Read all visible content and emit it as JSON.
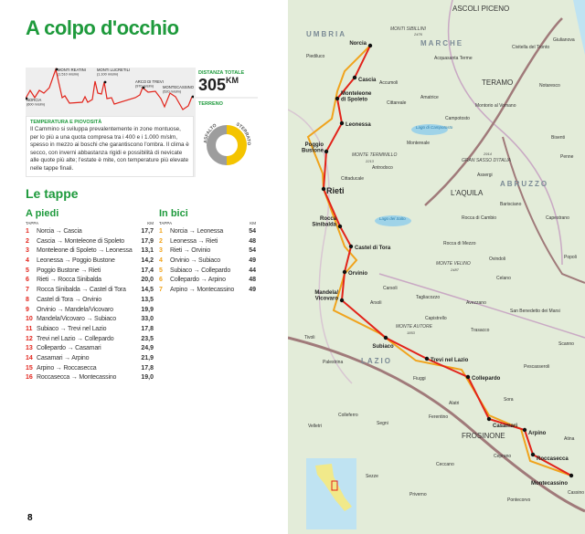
{
  "title": "A colpo d'occhio",
  "profile": {
    "peaks": [
      {
        "name": "NORCIA",
        "alt": "(600 m/slm)"
      },
      {
        "name": "MONTI REATINI",
        "alt": "(1.510 m/slm)"
      },
      {
        "name": "MONTI LUCRETILI",
        "alt": "(1.100 m/slm)"
      },
      {
        "name": "ARCO DI TREVI",
        "alt": "(970 m/slm)"
      },
      {
        "name": "MONTECASSINO",
        "alt": "(520 m/slm)"
      }
    ]
  },
  "distance": {
    "label": "DISTANZA TOTALE",
    "value": "305",
    "unit": "KM"
  },
  "terrain": {
    "label": "TERRENO",
    "asphalt": "ASFALTO",
    "dirt": "STERRATO",
    "asphalt_share": 0.5,
    "colors": {
      "asphalt": "#9d9d9d",
      "dirt": "#f4c400"
    }
  },
  "climate": {
    "label": "TEMPERATURA E PIOVOSITÀ",
    "text": "Il Cammino si sviluppa prevalentemente in zone montuose, per lo più a una quota compresa tra i 400 e i 1.000 m/slm, spesso in mezzo ai boschi che garantiscono l'ombra. Il clima è secco, con inverni abbastanza rigidi e possibilità di nevicate alle quote più alte; l'estate è mite, con temperature più elevate nelle tappe finali."
  },
  "stages_title": "Le tappe",
  "walk": {
    "title": "A piedi",
    "col_stage": "TAPPA",
    "col_km": "KM",
    "rows": [
      {
        "n": "1",
        "route": "Norcia → Cascia",
        "km": "17,7"
      },
      {
        "n": "2",
        "route": "Cascia → Monteleone di Spoleto",
        "km": "17,9"
      },
      {
        "n": "3",
        "route": "Monteleone di Spoleto → Leonessa",
        "km": "13,1"
      },
      {
        "n": "4",
        "route": "Leonessa → Poggio Bustone",
        "km": "14,2"
      },
      {
        "n": "5",
        "route": "Poggio Bustone → Rieti",
        "km": "17,4"
      },
      {
        "n": "6",
        "route": "Rieti → Rocca Sinibalda",
        "km": "20,0"
      },
      {
        "n": "7",
        "route": "Rocca Sinibalda → Castel di Tora",
        "km": "14,5"
      },
      {
        "n": "8",
        "route": "Castel di Tora → Orvinio",
        "km": "13,5"
      },
      {
        "n": "9",
        "route": "Orvinio → Mandela/Vicovaro",
        "km": "19,9"
      },
      {
        "n": "10",
        "route": "Mandela/Vicovaro → Subiaco",
        "km": "33,0"
      },
      {
        "n": "11",
        "route": "Subiaco → Trevi nel Lazio",
        "km": "17,8"
      },
      {
        "n": "12",
        "route": "Trevi nel Lazio → Collepardo",
        "km": "23,5"
      },
      {
        "n": "13",
        "route": "Collepardo → Casamari",
        "km": "24,9"
      },
      {
        "n": "14",
        "route": "Casamari → Arpino",
        "km": "21,9"
      },
      {
        "n": "15",
        "route": "Arpino → Roccasecca",
        "km": "17,8"
      },
      {
        "n": "16",
        "route": "Roccasecca → Montecassino",
        "km": "19,0"
      }
    ]
  },
  "bike": {
    "title": "In bici",
    "col_stage": "TAPPA",
    "col_km": "KM",
    "rows": [
      {
        "n": "1",
        "route": "Norcia → Leonessa",
        "km": "54"
      },
      {
        "n": "2",
        "route": "Leonessa → Rieti",
        "km": "48"
      },
      {
        "n": "3",
        "route": "Rieti → Orvinio",
        "km": "54"
      },
      {
        "n": "4",
        "route": "Orvinio → Subiaco",
        "km": "49"
      },
      {
        "n": "5",
        "route": "Subiaco → Collepardo",
        "km": "44"
      },
      {
        "n": "6",
        "route": "Collepardo → Arpino",
        "km": "48"
      },
      {
        "n": "7",
        "route": "Arpino → Montecassino",
        "km": "49"
      }
    ]
  },
  "page_number": "8",
  "map": {
    "stops": [
      "Norcia",
      "Cascia",
      "Monteleone di Spoleto",
      "Leonessa",
      "Poggio Bustone",
      "Rieti",
      "Rocca Sinibalda",
      "Castel di Tora",
      "Orvinio",
      "Mandela/ Vicovaro",
      "Subiaco",
      "Trevi nel Lazio",
      "Collepardo",
      "Casamari",
      "Arpino",
      "Roccasecca",
      "Montecassino"
    ],
    "regions": [
      "UMBRIA",
      "MARCHE",
      "ABRUZZO",
      "LAZIO"
    ],
    "towns": [
      "ASCOLI PICENO",
      "TERAMO",
      "L'AQUILA",
      "FROSINONE",
      "Piediluco",
      "Accumoli",
      "Acquasanta Terme",
      "Civitella del Tronto",
      "Giulianova",
      "Notaresco",
      "Amatrice",
      "Cittareale",
      "Montorio al Vomano",
      "Campotosto",
      "Montereale",
      "Antrodoco",
      "Cittaducale",
      "Assergi",
      "Barisciano",
      "Capestrano",
      "Bisenti",
      "Penne",
      "Rocca di Cambio",
      "Rocca di Mezzo",
      "Ovindoli",
      "Popoli",
      "Celano",
      "Carsoli",
      "Tagliacozzo",
      "Avezzano",
      "San Benedetto dei Marsi",
      "Arsoli",
      "Capistrello",
      "Trasacco",
      "Scanno",
      "Tivoli",
      "Palestrina",
      "Fiuggi",
      "Pescasseroli",
      "Alatri",
      "Sora",
      "Colleferro",
      "Segni",
      "Ferentino",
      "Velletri",
      "Atina",
      "Ceprano",
      "Ceccano",
      "Sezze",
      "Priverno",
      "Pontecorvo",
      "Cassino"
    ],
    "peaks": [
      "MONTI SIBILLINI",
      "2476",
      "MONTE TERMINILLO",
      "2213",
      "GRAN SASSO D'ITALIA",
      "2914",
      "MONTE VELINO",
      "2487",
      "MONTE AUTORE",
      "1853"
    ],
    "lakes": [
      "Lago di Campotosto",
      "Lago del Salto"
    ],
    "colors": {
      "walk": "#e2231a",
      "bike": "#f0a31c",
      "land": "#e3ecd9",
      "sea": "#bfe3f2",
      "road": "#a07a7a"
    }
  }
}
